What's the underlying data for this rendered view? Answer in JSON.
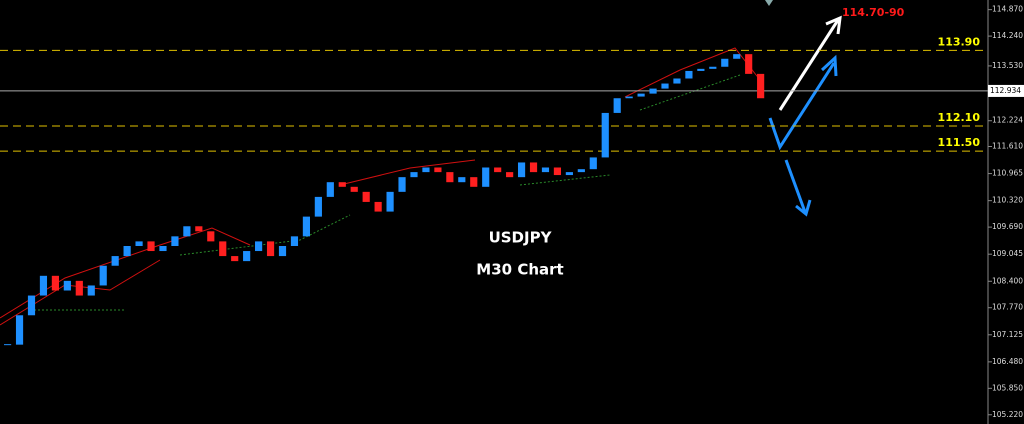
{
  "chart_data": {
    "type": "candlestick",
    "title": "USDJPY",
    "subtitle": "M30 Chart",
    "values": [
      106.89,
      107.59,
      108.06,
      108.53,
      108.18,
      108.41,
      108.06,
      108.3,
      108.77,
      109.0,
      109.24,
      109.35,
      109.12,
      109.24,
      109.47,
      109.71,
      109.59,
      109.35,
      109.0,
      108.88,
      109.12,
      109.35,
      109.0,
      109.24,
      109.47,
      109.94,
      110.41,
      110.76,
      110.65,
      110.53,
      110.29,
      110.06,
      110.53,
      110.88,
      111.0,
      111.11,
      111.0,
      110.76,
      110.88,
      110.65,
      111.11,
      111.0,
      110.88,
      111.23,
      111.0,
      111.11,
      110.93,
      111.0,
      111.07,
      111.35,
      112.41,
      112.76,
      112.8,
      112.87,
      112.99,
      113.11,
      113.23,
      113.41,
      113.46,
      113.51,
      113.7,
      113.81,
      113.34,
      112.76
    ],
    "up_color": "#1e90ff",
    "down_color": "#ff2020",
    "ylim": [
      105.0,
      115.1
    ],
    "yticks": [
      {
        "value": 114.87,
        "label": "114.870"
      },
      {
        "value": 114.24,
        "label": "114.240"
      },
      {
        "value": 113.53,
        "label": "113.530"
      },
      {
        "value": 112.224,
        "label": "112.224"
      },
      {
        "value": 111.61,
        "label": "111.610"
      },
      {
        "value": 110.965,
        "label": "110.965"
      },
      {
        "value": 110.32,
        "label": "110.320"
      },
      {
        "value": 109.69,
        "label": "109.690"
      },
      {
        "value": 109.045,
        "label": "109.045"
      },
      {
        "value": 108.4,
        "label": "108.400"
      },
      {
        "value": 107.77,
        "label": "107.770"
      },
      {
        "value": 107.125,
        "label": "107.125"
      },
      {
        "value": 106.48,
        "label": "106.480"
      },
      {
        "value": 105.85,
        "label": "105.850"
      },
      {
        "value": 105.22,
        "label": "105.220"
      }
    ],
    "current_price": 112.934,
    "levels": [
      {
        "value": 113.9,
        "label": "113.90"
      },
      {
        "value": 112.1,
        "label": "112.10"
      },
      {
        "value": 111.5,
        "label": "111.50"
      }
    ],
    "target_label": "114.70-90"
  }
}
